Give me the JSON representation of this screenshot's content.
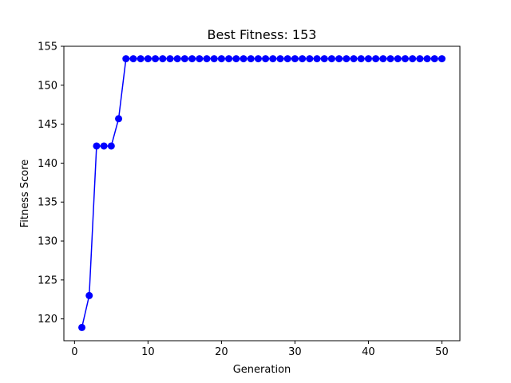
{
  "chart_data": {
    "type": "line",
    "title": "Best Fitness: 153",
    "xlabel": "Generation",
    "ylabel": "Fitness Score",
    "xlim": [
      -1.45,
      52.45
    ],
    "ylim": [
      117.2,
      155.0
    ],
    "xticks": [
      0,
      10,
      20,
      30,
      40,
      50
    ],
    "yticks": [
      120,
      125,
      130,
      135,
      140,
      145,
      150,
      155
    ],
    "grid": false,
    "legend": "none",
    "series": [
      {
        "color": "#0000ff",
        "marker": "circle",
        "x": [
          1,
          2,
          3,
          4,
          5,
          6,
          7,
          8,
          9,
          10,
          11,
          12,
          13,
          14,
          15,
          16,
          17,
          18,
          19,
          20,
          21,
          22,
          23,
          24,
          25,
          26,
          27,
          28,
          29,
          30,
          31,
          32,
          33,
          34,
          35,
          36,
          37,
          38,
          39,
          40,
          41,
          42,
          43,
          44,
          45,
          46,
          47,
          48,
          49,
          50
        ],
        "values": [
          118.9,
          123.0,
          142.2,
          142.2,
          142.2,
          145.7,
          153.4,
          153.4,
          153.4,
          153.4,
          153.4,
          153.4,
          153.4,
          153.4,
          153.4,
          153.4,
          153.4,
          153.4,
          153.4,
          153.4,
          153.4,
          153.4,
          153.4,
          153.4,
          153.4,
          153.4,
          153.4,
          153.4,
          153.4,
          153.4,
          153.4,
          153.4,
          153.4,
          153.4,
          153.4,
          153.4,
          153.4,
          153.4,
          153.4,
          153.4,
          153.4,
          153.4,
          153.4,
          153.4,
          153.4,
          153.4,
          153.4,
          153.4,
          153.4,
          153.4
        ]
      }
    ]
  }
}
